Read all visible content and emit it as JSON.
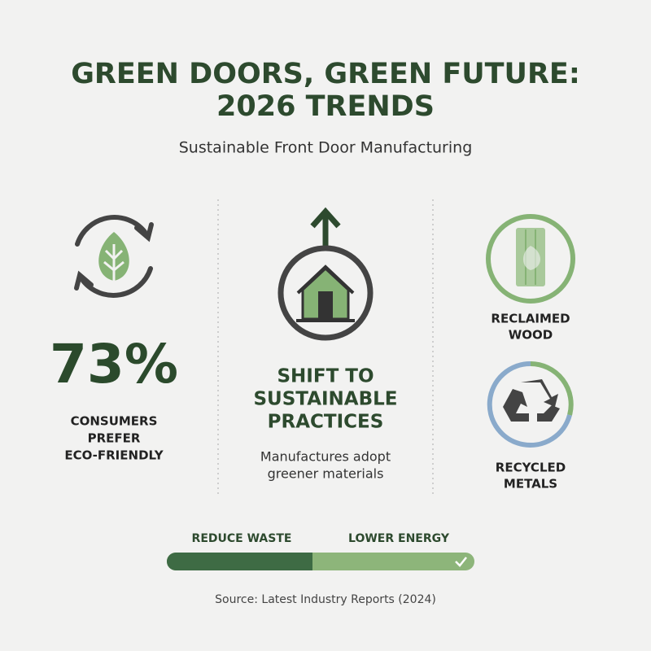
{
  "header": {
    "title_lines": [
      "GREEN DOORS, GREEN FUTURE:",
      "2026 TRENDS"
    ],
    "subtitle": "Sustainable Front Door Manufacturing"
  },
  "columns": [
    {
      "stat": "73%",
      "label_lines": [
        "CONSUMERS",
        "PREFER",
        "ECO-FRIENDLY"
      ]
    },
    {
      "heading_lines": [
        "SHIFT TO",
        "SUSTAINABLE",
        "PRACTICES"
      ],
      "text_lines": [
        "Manufactures adopt",
        "greener materials"
      ]
    },
    {
      "items": [
        {
          "label_lines": [
            "RECLAIMED",
            "WOOD"
          ]
        },
        {
          "label_lines": [
            "RECYCLED",
            "METALS"
          ]
        }
      ]
    }
  ],
  "bar": {
    "left": "REDUCE WASTE",
    "right": "LOWER ENERGY"
  },
  "footer": {
    "source": "Source: Latest Industry Reports (2024)"
  }
}
